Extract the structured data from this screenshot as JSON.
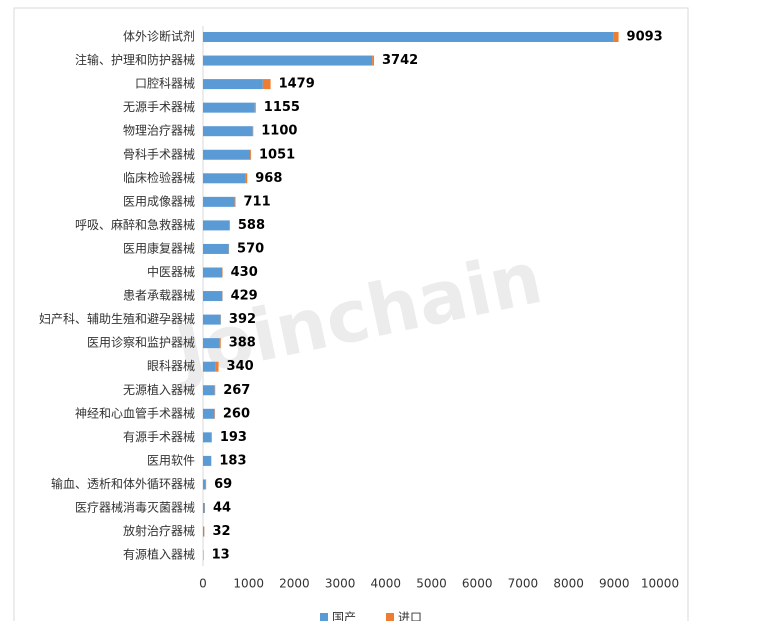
{
  "chart_data": {
    "type": "stacked-bar-horizontal",
    "watermark": "Joinchain",
    "categories": [
      "体外诊断试剂",
      "注输、护理和防护器械",
      "口腔科器械",
      "无源手术器械",
      "物理治疗器械",
      "骨科手术器械",
      "临床检验器械",
      "医用成像器械",
      "呼吸、麻醉和急救器械",
      "医用康复器械",
      "中医器械",
      "患者承载器械",
      "妇产科、辅助生殖和避孕器械",
      "医用诊察和监护器械",
      "眼科器械",
      "无源植入器械",
      "神经和心血管手术器械",
      "有源手术器械",
      "医用软件",
      "输血、透析和体外循环器械",
      "医疗器械消毒灭菌器械",
      "放射治疗器械",
      "有源植入器械"
    ],
    "series": [
      {
        "name": "国产",
        "color": "#5b9bd5",
        "values": [
          8973,
          3702,
          1309,
          1135,
          1090,
          1031,
          938,
          691,
          578,
          565,
          420,
          424,
          387,
          368,
          280,
          257,
          250,
          188,
          180,
          59,
          39,
          27,
          8
        ]
      },
      {
        "name": "进口",
        "color": "#ed7d31",
        "values": [
          120,
          40,
          170,
          20,
          10,
          20,
          30,
          20,
          10,
          5,
          10,
          5,
          5,
          20,
          60,
          10,
          10,
          5,
          3,
          10,
          5,
          5,
          5
        ]
      }
    ],
    "totals": [
      9093,
      3742,
      1479,
      1155,
      1100,
      1051,
      968,
      711,
      588,
      570,
      430,
      429,
      392,
      388,
      340,
      267,
      260,
      193,
      183,
      69,
      44,
      32,
      13
    ],
    "xlim": [
      0,
      10000
    ],
    "xticks": [
      0,
      1000,
      2000,
      3000,
      4000,
      5000,
      6000,
      7000,
      8000,
      9000,
      10000
    ]
  }
}
